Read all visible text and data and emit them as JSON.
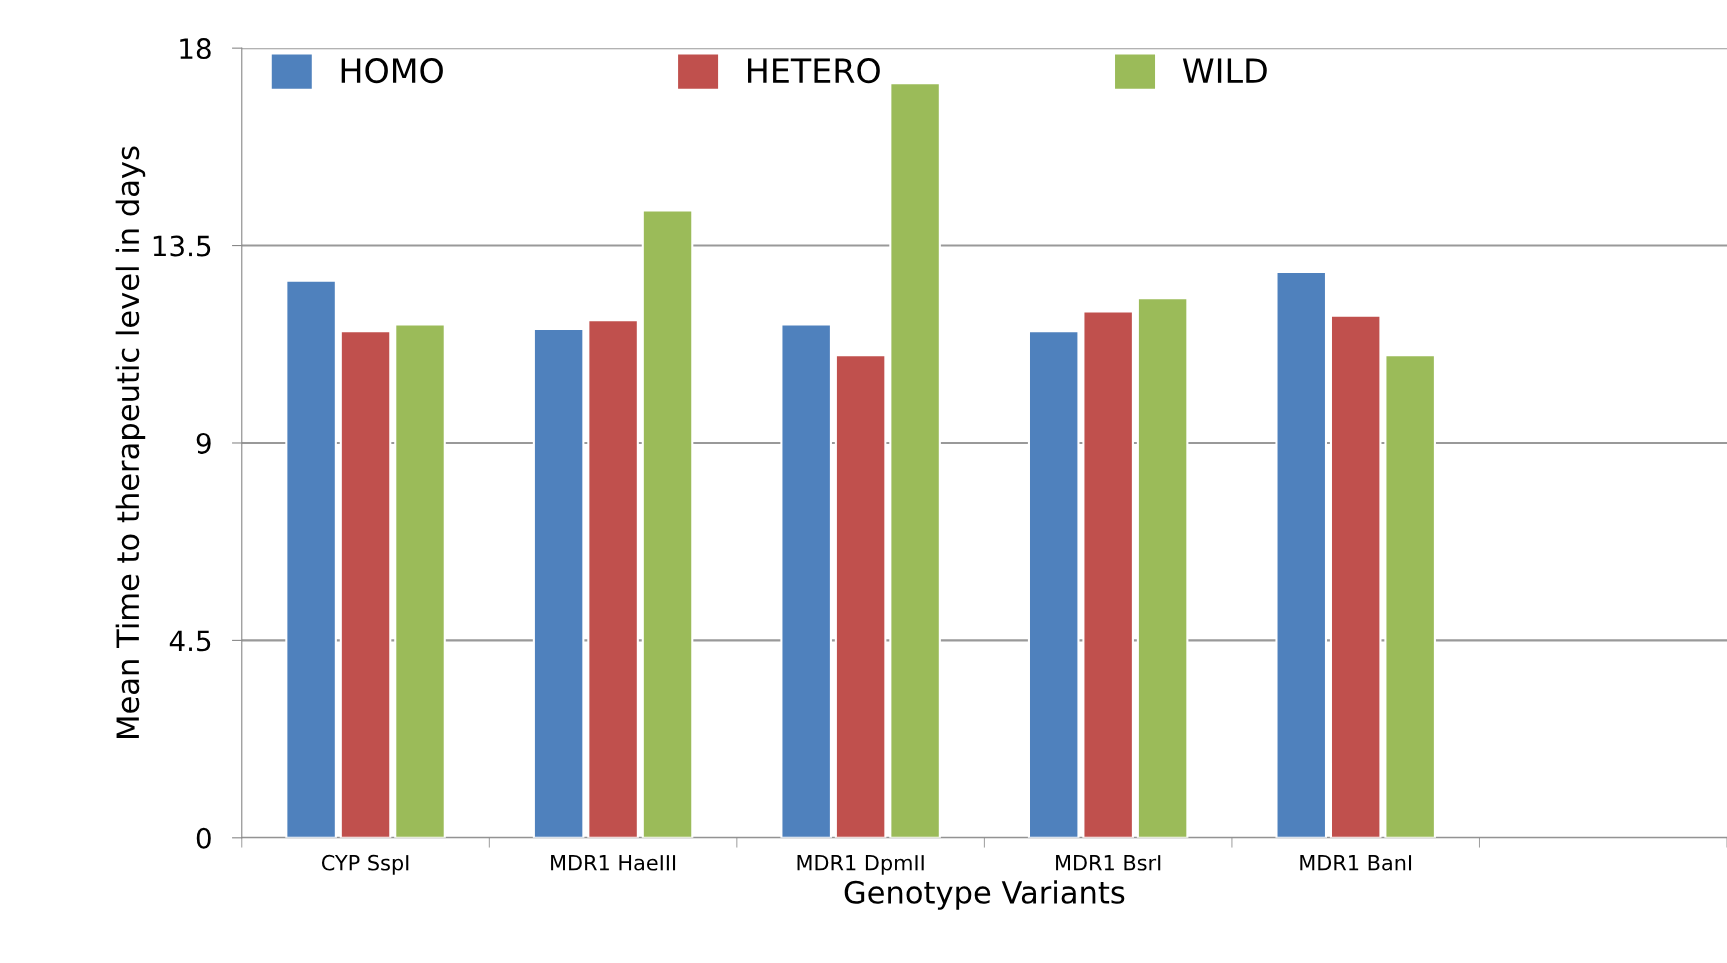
{
  "chart_data": {
    "type": "bar",
    "xlabel": "Genotype Variants",
    "ylabel": "Mean Time to therapeutic level in days",
    "categories": [
      "CYP SspI",
      "MDR1 HaeIII",
      "MDR1 DpmII",
      "MDR1 BsrI",
      "MDR1 BanI",
      null
    ],
    "series": [
      {
        "name": "HOMO",
        "color": "#4f81bd",
        "values": [
          12.7,
          11.6,
          11.7,
          11.55,
          12.9,
          null
        ]
      },
      {
        "name": "HETERO",
        "color": "#c0504d",
        "values": [
          11.55,
          11.8,
          11.0,
          12.0,
          11.9,
          null
        ]
      },
      {
        "name": "WILD",
        "color": "#9bbb59",
        "values": [
          11.7,
          14.3,
          17.2,
          12.3,
          11.0,
          null
        ]
      }
    ],
    "ylim": [
      0,
      18
    ],
    "yticks": [
      0,
      4.5,
      9,
      13.5,
      18
    ],
    "grid": "y",
    "legend": "top left"
  }
}
